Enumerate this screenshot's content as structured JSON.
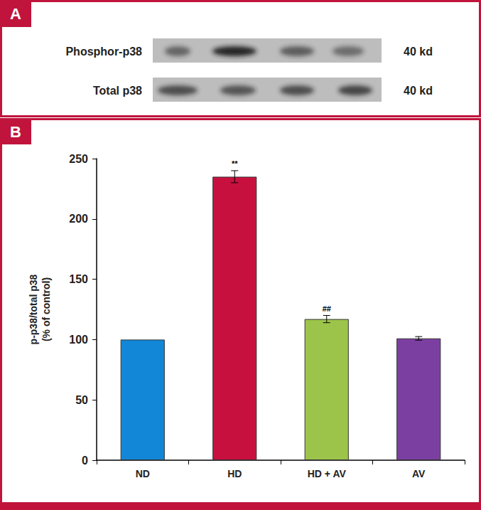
{
  "panel_a": {
    "label": "A",
    "rows": [
      {
        "name": "Phosphor-p38",
        "size": "40 kd"
      },
      {
        "name": "Total p38",
        "size": "40 kd"
      }
    ]
  },
  "chart_data": {
    "type": "bar",
    "panel_label": "B",
    "categories": [
      "ND",
      "HD",
      "HD + AV",
      "AV"
    ],
    "values": [
      100,
      235,
      117,
      101
    ],
    "errors": [
      0,
      5,
      3,
      1.5
    ],
    "annotations": [
      null,
      "**",
      "##",
      null
    ],
    "colors": [
      "#1287d7",
      "#c8103f",
      "#9cc44a",
      "#7b3fa1"
    ],
    "y_label": "p-p38/total p38\n(% of control)",
    "ylim": [
      0,
      250
    ],
    "yticks": [
      0,
      50,
      100,
      150,
      200,
      250
    ],
    "grid": false
  }
}
